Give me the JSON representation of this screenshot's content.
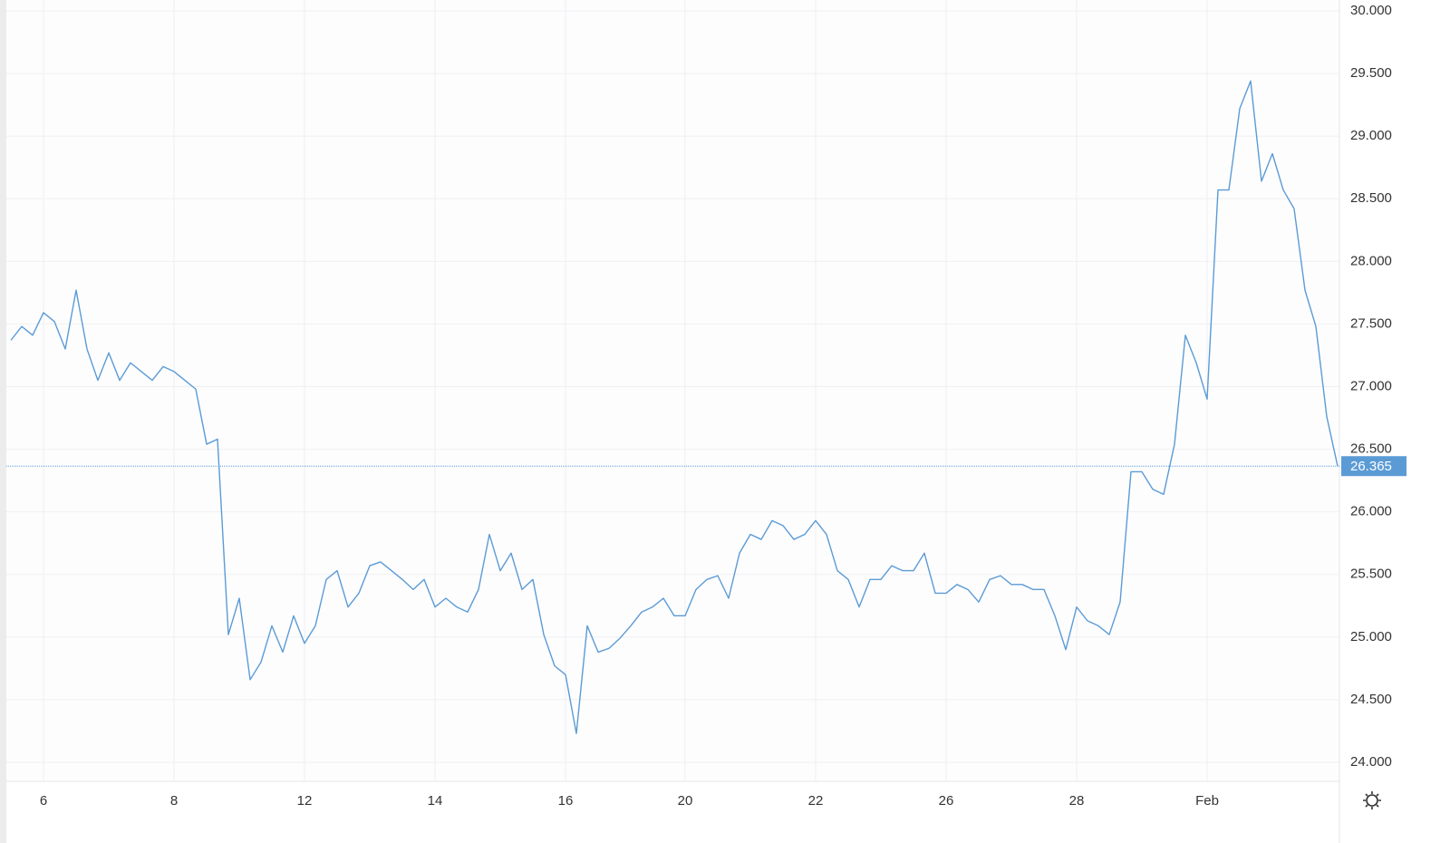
{
  "chart_data": {
    "type": "line",
    "categories": [
      null,
      null,
      null,
      "6",
      null,
      null,
      null,
      null,
      null,
      null,
      null,
      null,
      null,
      null,
      null,
      "8",
      null,
      null,
      null,
      null,
      null,
      null,
      null,
      null,
      null,
      null,
      null,
      "12",
      null,
      null,
      null,
      null,
      null,
      null,
      null,
      null,
      null,
      null,
      null,
      "14",
      null,
      null,
      null,
      null,
      null,
      null,
      null,
      null,
      null,
      null,
      null,
      "16",
      null,
      null,
      null,
      null,
      null,
      null,
      null,
      null,
      null,
      null,
      "20",
      null,
      null,
      null,
      null,
      null,
      null,
      null,
      null,
      null,
      null,
      null,
      "22",
      null,
      null,
      null,
      null,
      null,
      null,
      null,
      null,
      null,
      null,
      null,
      "26",
      null,
      null,
      null,
      null,
      null,
      null,
      null,
      null,
      null,
      null,
      null,
      "28",
      null,
      null,
      null,
      null,
      null,
      null,
      null,
      null,
      null,
      null,
      null,
      "Feb",
      null,
      null,
      null,
      null,
      null,
      null,
      null,
      null,
      null,
      null,
      null,
      null
    ],
    "series": [
      {
        "color": "#5b9bd5",
        "values": [
          27.37,
          27.48,
          27.41,
          27.59,
          27.52,
          27.3,
          27.77,
          27.3,
          27.05,
          27.27,
          27.05,
          27.19,
          27.12,
          27.05,
          27.16,
          27.12,
          27.05,
          26.98,
          26.54,
          26.58,
          25.02,
          25.31,
          24.66,
          24.8,
          25.09,
          24.88,
          25.17,
          24.95,
          25.09,
          25.46,
          25.53,
          25.24,
          25.35,
          25.57,
          25.6,
          25.53,
          25.46,
          25.38,
          25.46,
          25.24,
          25.31,
          25.24,
          25.2,
          25.38,
          25.82,
          25.53,
          25.67,
          25.38,
          25.46,
          25.02,
          24.77,
          24.7,
          24.23,
          25.09,
          24.88,
          24.91,
          24.99,
          25.09,
          25.2,
          25.24,
          25.31,
          25.17,
          25.17,
          25.38,
          25.46,
          25.49,
          25.31,
          25.67,
          25.82,
          25.78,
          25.93,
          25.89,
          25.78,
          25.82,
          25.93,
          25.82,
          25.53,
          25.46,
          25.24,
          25.46,
          25.46,
          25.57,
          25.53,
          25.53,
          25.67,
          25.35,
          25.35,
          25.42,
          25.38,
          25.28,
          25.46,
          25.49,
          25.42,
          25.42,
          25.38,
          25.38,
          25.17,
          24.9,
          25.24,
          25.13,
          25.09,
          25.02,
          25.28,
          26.32,
          26.32,
          26.18,
          26.14,
          26.54,
          27.41,
          27.19,
          26.9,
          28.57,
          28.57,
          29.22,
          29.44,
          28.64,
          28.86,
          28.57,
          28.42,
          27.77,
          27.48,
          26.76,
          26.365
        ]
      }
    ],
    "last_price": 26.365,
    "ylim": [
      24,
      30
    ],
    "yticks": [
      {
        "value": 24,
        "label": "24.000"
      },
      {
        "value": 24.5,
        "label": "24.500"
      },
      {
        "value": 25,
        "label": "25.000"
      },
      {
        "value": 25.5,
        "label": "25.500"
      },
      {
        "value": 26,
        "label": "26.000"
      },
      {
        "value": 26.5,
        "label": "26.500"
      },
      {
        "value": 27,
        "label": "27.000"
      },
      {
        "value": 27.5,
        "label": "27.500"
      },
      {
        "value": 28,
        "label": "28.000"
      },
      {
        "value": 28.5,
        "label": "28.500"
      },
      {
        "value": 29,
        "label": "29.000"
      },
      {
        "value": 29.5,
        "label": "29.500"
      },
      {
        "value": 30,
        "label": "30.000"
      }
    ],
    "grid": true
  }
}
